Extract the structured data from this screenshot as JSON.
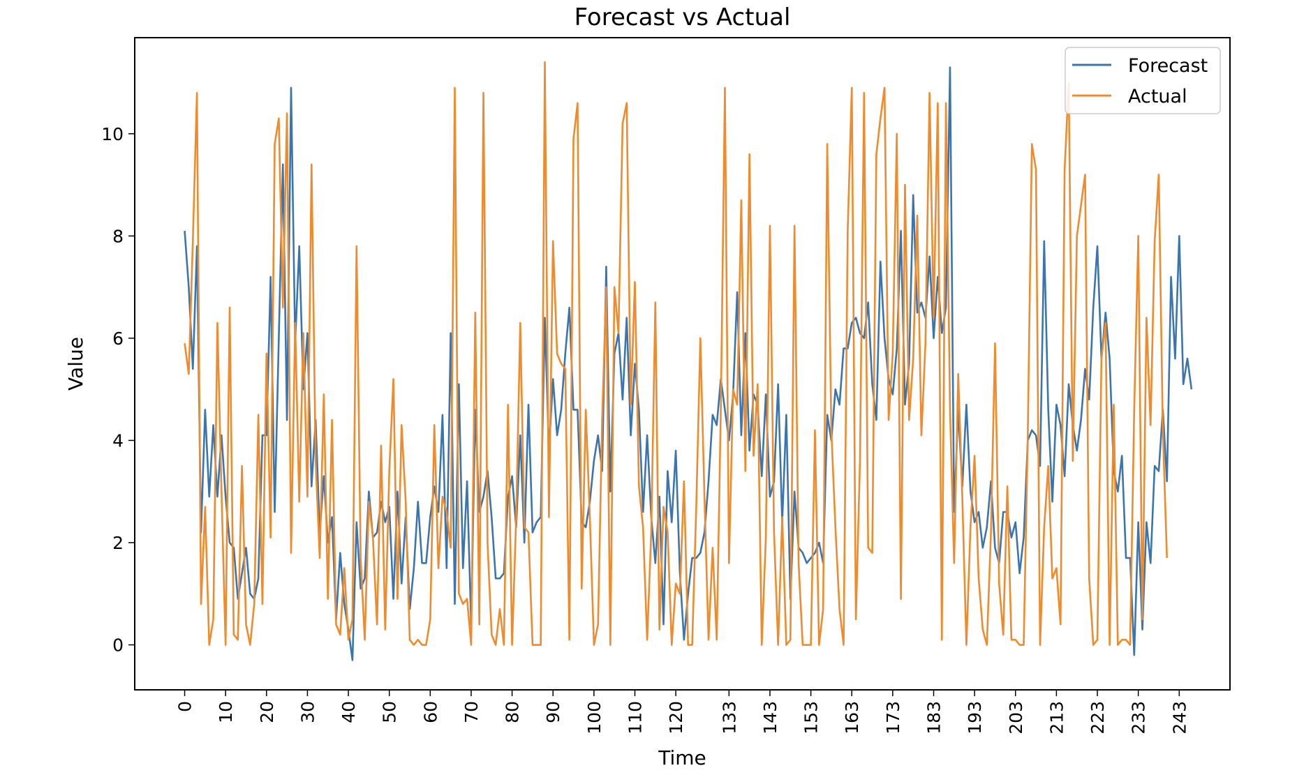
{
  "chart_data": {
    "type": "line",
    "title": "Forecast vs Actual",
    "xlabel": "Time",
    "ylabel": "Value",
    "xlim": [
      -12.2,
      255.4
    ],
    "ylim": [
      -0.88,
      11.88
    ],
    "xticks": [
      0,
      10,
      20,
      30,
      40,
      50,
      60,
      70,
      80,
      90,
      100,
      110,
      120,
      133,
      143,
      153,
      163,
      173,
      183,
      193,
      203,
      213,
      223,
      233,
      243
    ],
    "yticks": [
      0,
      2,
      4,
      6,
      8,
      10
    ],
    "legend": {
      "position": "top-right"
    },
    "colors": {
      "Forecast": "#3a75b0",
      "Actual": "#ef8b2c"
    },
    "series": [
      {
        "name": "Forecast",
        "color": "#3a75b0",
        "values": [
          8.1,
          7,
          5.4,
          7.8,
          2.2,
          4.6,
          2.9,
          4.3,
          2.9,
          4.1,
          2.9,
          2.0,
          1.9,
          0.9,
          1.4,
          1.9,
          1.0,
          0.9,
          1.3,
          4.1,
          4.1,
          7.2,
          2.6,
          6.0,
          9.4,
          4.4,
          10.9,
          5.9,
          7.8,
          5.0,
          6.1,
          3.1,
          4.4,
          2.2,
          3.3,
          2.0,
          2.5,
          0.5,
          1.8,
          0.8,
          0.3,
          -0.3,
          2.4,
          1.1,
          1.3,
          3.0,
          2.1,
          2.2,
          2.8,
          2.4,
          2.7,
          0.9,
          3.0,
          1.2,
          2.5,
          0.7,
          1.5,
          2.8,
          1.6,
          1.6,
          2.5,
          3.1,
          2.6,
          4.5,
          1.5,
          6.1,
          0.8,
          5.1,
          1.5,
          3.2,
          0.4,
          4.6,
          2.6,
          2.9,
          3.4,
          2.5,
          1.3,
          1.3,
          1.4,
          2.9,
          3.3,
          2.3,
          4.1,
          2.0,
          4.7,
          2.2,
          2.4,
          2.5,
          6.4,
          3.8,
          5.2,
          4.1,
          4.6,
          5.7,
          6.6,
          4.6,
          4.6,
          2.4,
          2.3,
          2.8,
          3.6,
          4.1,
          3.4,
          7.4,
          3.0,
          5.7,
          6.1,
          4.8,
          6.4,
          4.1,
          5.5,
          4.6,
          2.6,
          4.1,
          2.5,
          1.6,
          2.9,
          0.4,
          3.4,
          2.4,
          3.8,
          1.4,
          0.1,
          1.0,
          1.7,
          1.7,
          1.8,
          2.2,
          3.2,
          4.5,
          4.3,
          5.2,
          4.6,
          4.0,
          4.9,
          6.9,
          4.1,
          6.1,
          3.8,
          4.9,
          4.7,
          3.3,
          4.9,
          2.9,
          3.2,
          5.1,
          2.4,
          4.5,
          0.9,
          3.0,
          1.9,
          1.8,
          1.6,
          1.7,
          1.8,
          2.0,
          1.6,
          4.5,
          4.0,
          5.0,
          4.7,
          5.8,
          5.8,
          6.3,
          6.4,
          6.1,
          6.0,
          6.7,
          5.1,
          4.4,
          7.5,
          6.0,
          5.2,
          4.9,
          5.8,
          8.1,
          4.7,
          5.5,
          8.8,
          6.5,
          6.7,
          6.4,
          7.6,
          6.0,
          7.2,
          6.1,
          6.6,
          11.3,
          2.6,
          4.6,
          3.1,
          4.7,
          3.0,
          2.4,
          2.6,
          1.9,
          2.3,
          3.2,
          1.9,
          1.6,
          2.6,
          2.6,
          2.1,
          2.4,
          1.4,
          2.1,
          4.0,
          4.2,
          4.1,
          3.5,
          7.9,
          4.6,
          2.8,
          4.7,
          4.3,
          3.3,
          5.1,
          4.3,
          3.8,
          4.4,
          5.4,
          4.8,
          6.6,
          7.8,
          5.6,
          6.5,
          5.6,
          3.4,
          3.0,
          3.7,
          1.7,
          1.7,
          -0.2,
          2.4,
          0.3,
          2.4,
          1.6,
          3.5,
          3.4,
          4.6,
          3.2,
          7.2,
          5.6,
          8.0,
          5.1,
          5.6,
          5.0
        ]
      },
      {
        "name": "Actual",
        "color": "#ef8b2c",
        "values": [
          5.9,
          5.3,
          7.9,
          10.8,
          0.8,
          2.7,
          0.0,
          0.5,
          6.3,
          3.0,
          0.0,
          6.6,
          0.2,
          0.1,
          3.5,
          0.4,
          0.0,
          0.8,
          4.5,
          0.8,
          5.7,
          2.1,
          9.8,
          10.3,
          6.6,
          10.4,
          1.8,
          6.3,
          2.8,
          6.1,
          2.9,
          9.4,
          3.6,
          1.7,
          4.9,
          0.9,
          4.4,
          0.4,
          0.2,
          1.5,
          0.1,
          0.5,
          7.8,
          1.7,
          0.1,
          2.8,
          2.1,
          0.4,
          3.9,
          0.3,
          3.4,
          5.2,
          0.9,
          4.3,
          2.8,
          0.1,
          0.0,
          0.1,
          0.0,
          0.0,
          0.5,
          4.3,
          1.5,
          2.9,
          2.6,
          1.9,
          10.9,
          1.0,
          0.8,
          0.9,
          0.0,
          6.5,
          0.4,
          10.8,
          2.0,
          0.2,
          0.0,
          0.7,
          0.0,
          4.7,
          0.0,
          2.5,
          6.3,
          2.3,
          2.2,
          0.0,
          0.0,
          0.0,
          11.4,
          2.5,
          7.9,
          5.7,
          5.5,
          5.4,
          0.1,
          9.9,
          10.6,
          1.1,
          4.6,
          2.5,
          0.0,
          0.4,
          4.4,
          7.0,
          0.0,
          7.0,
          6.1,
          10.2,
          10.6,
          4.7,
          7.1,
          3.1,
          2.3,
          0.1,
          2.2,
          6.7,
          0.3,
          2.7,
          2.2,
          0.0,
          1.2,
          1.0,
          3.2,
          0.0,
          0.0,
          2.7,
          6.0,
          2.9,
          0.1,
          1.9,
          0.1,
          4.6,
          10.9,
          1.6,
          5.0,
          4.7,
          8.7,
          3.4,
          9.6,
          3.7,
          5.1,
          0.0,
          2.1,
          8.2,
          2.2,
          0.0,
          2.5,
          0.0,
          0.1,
          8.2,
          1.6,
          0.0,
          0.0,
          0.0,
          4.2,
          0.0,
          0.7,
          9.8,
          4.2,
          2.3,
          0.7,
          0.0,
          8.1,
          10.9,
          0.5,
          3.6,
          10.8,
          1.9,
          1.8,
          9.6,
          10.3,
          10.9,
          4.4,
          5.7,
          10.0,
          0.9,
          9.0,
          4.4,
          5.6,
          8.4,
          4.1,
          5.9,
          10.8,
          6.4,
          10.6,
          0.1,
          10.6,
          4.6,
          1.6,
          5.3,
          2.9,
          0.0,
          2.3,
          3.7,
          1.3,
          0.3,
          0.0,
          2.2,
          5.9,
          1.2,
          0.2,
          3.1,
          0.1,
          0.1,
          0.0,
          0.0,
          4.1,
          9.8,
          9.3,
          0.0,
          2.3,
          3.5,
          1.3,
          1.5,
          0.4,
          9.3,
          11.0,
          3.6,
          8.0,
          8.6,
          9.2,
          1.3,
          0.0,
          0.1,
          5.6,
          6.3,
          0.0,
          4.7,
          0.0,
          0.1,
          0.1,
          0.0,
          4.6,
          8.0,
          0.5,
          6.4,
          4.3,
          7.9,
          9.2,
          4.2,
          1.7
        ]
      }
    ]
  }
}
